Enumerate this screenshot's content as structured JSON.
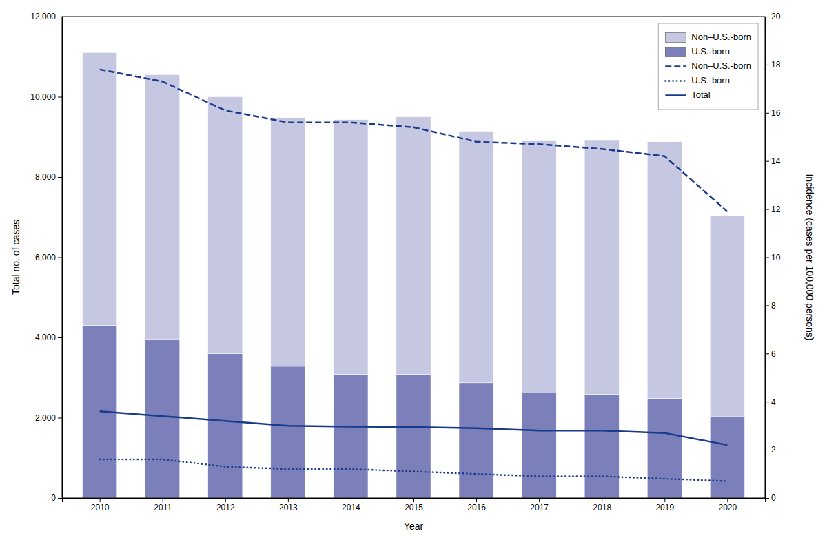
{
  "chart_data": {
    "type": "bar",
    "stacked": true,
    "x": [
      2010,
      2011,
      2012,
      2013,
      2014,
      2015,
      2016,
      2017,
      2018,
      2019,
      2020
    ],
    "xlim": [
      2009.4,
      2020.6
    ],
    "xticks": [
      2010,
      2011,
      2012,
      2013,
      2014,
      2015,
      2016,
      2017,
      2018,
      2019,
      2020
    ],
    "xlabel": "Year",
    "ylabel": "Total no. of cases",
    "y2label": "Incidence (cases per 100,000 persons)",
    "ylim": [
      0,
      12000
    ],
    "yticks": [
      0,
      {
        "value": 2000,
        "label": "2,000"
      },
      {
        "value": 4000,
        "label": "4,000"
      },
      {
        "value": 6000,
        "label": "6,000"
      },
      {
        "value": 8000,
        "label": "8,000"
      },
      {
        "value": 10000,
        "label": "10,000"
      },
      {
        "value": 12000,
        "label": "12,000"
      }
    ],
    "y2lim": [
      0,
      20
    ],
    "y2ticks": [
      0,
      2,
      4,
      6,
      8,
      10,
      12,
      14,
      16,
      18,
      20
    ],
    "grid": false,
    "legend": "upper right",
    "series": [
      {
        "name": "U.S.-born",
        "type": "bar",
        "color": "#7b7fba",
        "values": [
          4300,
          3950,
          3600,
          3280,
          3080,
          3080,
          2870,
          2620,
          2580,
          2480,
          2040
        ]
      },
      {
        "name": "Non–U.S.-born",
        "type": "bar",
        "color": "#c5c8e0",
        "values": [
          6800,
          6600,
          6400,
          6200,
          6350,
          6420,
          6270,
          6280,
          6330,
          6400,
          5000
        ]
      },
      {
        "name": "Non–U.S.-born",
        "type": "line",
        "axis": "y2",
        "color": "#1a3a8c",
        "line_style": "dashed",
        "values": [
          17.8,
          17.3,
          16.1,
          15.6,
          15.6,
          15.4,
          14.8,
          14.7,
          14.5,
          14.2,
          11.9
        ]
      },
      {
        "name": "U.S.-born",
        "type": "line",
        "axis": "y2",
        "color": "#1a3a8c",
        "line_style": "dotted",
        "values": [
          1.6,
          1.6,
          1.3,
          1.2,
          1.2,
          1.1,
          1.0,
          0.9,
          0.9,
          0.8,
          0.7
        ]
      },
      {
        "name": "Total",
        "type": "line",
        "axis": "y2",
        "color": "#1a3a8c",
        "line_style": "solid",
        "values": [
          3.6,
          3.4,
          3.2,
          3.0,
          2.96,
          2.95,
          2.9,
          2.8,
          2.8,
          2.7,
          2.2
        ]
      }
    ]
  }
}
